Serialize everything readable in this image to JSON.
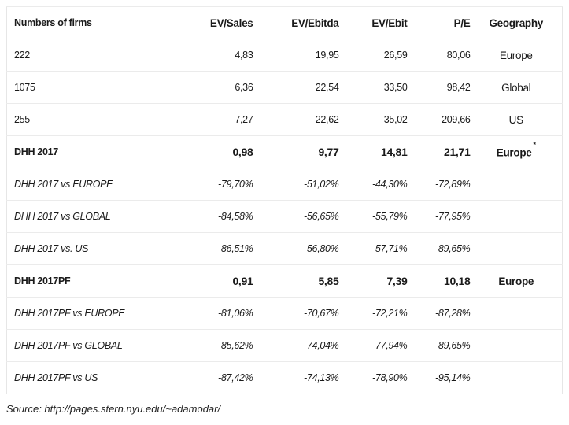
{
  "table": {
    "headers": [
      "Numbers of firms",
      "EV/Sales",
      "EV/Ebitda",
      "EV/Ebit",
      "P/E",
      "Geography"
    ],
    "rows": [
      {
        "style": "normal",
        "cells": [
          "222",
          "4,83",
          "19,95",
          "26,59",
          "80,06",
          "Europe"
        ]
      },
      {
        "style": "normal",
        "cells": [
          "1075",
          "6,36",
          "22,54",
          "33,50",
          "98,42",
          "Global"
        ]
      },
      {
        "style": "normal",
        "cells": [
          "255",
          "7,27",
          "22,62",
          "35,02",
          "209,66",
          "US"
        ]
      },
      {
        "style": "bold",
        "cells": [
          "DHH 2017",
          "0,98",
          "9,77",
          "14,81",
          "21,71",
          "Europe"
        ],
        "note": "*"
      },
      {
        "style": "ital",
        "cells": [
          "DHH 2017 vs EUROPE",
          "-79,70%",
          "-51,02%",
          "-44,30%",
          "-72,89%",
          ""
        ]
      },
      {
        "style": "ital",
        "cells": [
          "DHH 2017 vs GLOBAL",
          "-84,58%",
          "-56,65%",
          "-55,79%",
          "-77,95%",
          ""
        ]
      },
      {
        "style": "ital",
        "cells": [
          "DHH 2017 vs. US",
          "-86,51%",
          "-56,80%",
          "-57,71%",
          "-89,65%",
          ""
        ]
      },
      {
        "style": "bold",
        "cells": [
          "DHH 2017PF",
          "0,91",
          "5,85",
          "7,39",
          "10,18",
          "Europe"
        ]
      },
      {
        "style": "ital",
        "cells": [
          "DHH 2017PF vs EUROPE",
          "-81,06%",
          "-70,67%",
          "-72,21%",
          "-87,28%",
          ""
        ]
      },
      {
        "style": "ital",
        "cells": [
          "DHH 2017PF vs GLOBAL",
          "-85,62%",
          "-74,04%",
          "-77,94%",
          "-89,65%",
          ""
        ]
      },
      {
        "style": "ital",
        "cells": [
          "DHH 2017PF vs US",
          "-87,42%",
          "-74,13%",
          "-78,90%",
          "-95,14%",
          ""
        ]
      }
    ]
  },
  "source": "Source: http://pages.stern.nyu.edu/~adamodar/"
}
